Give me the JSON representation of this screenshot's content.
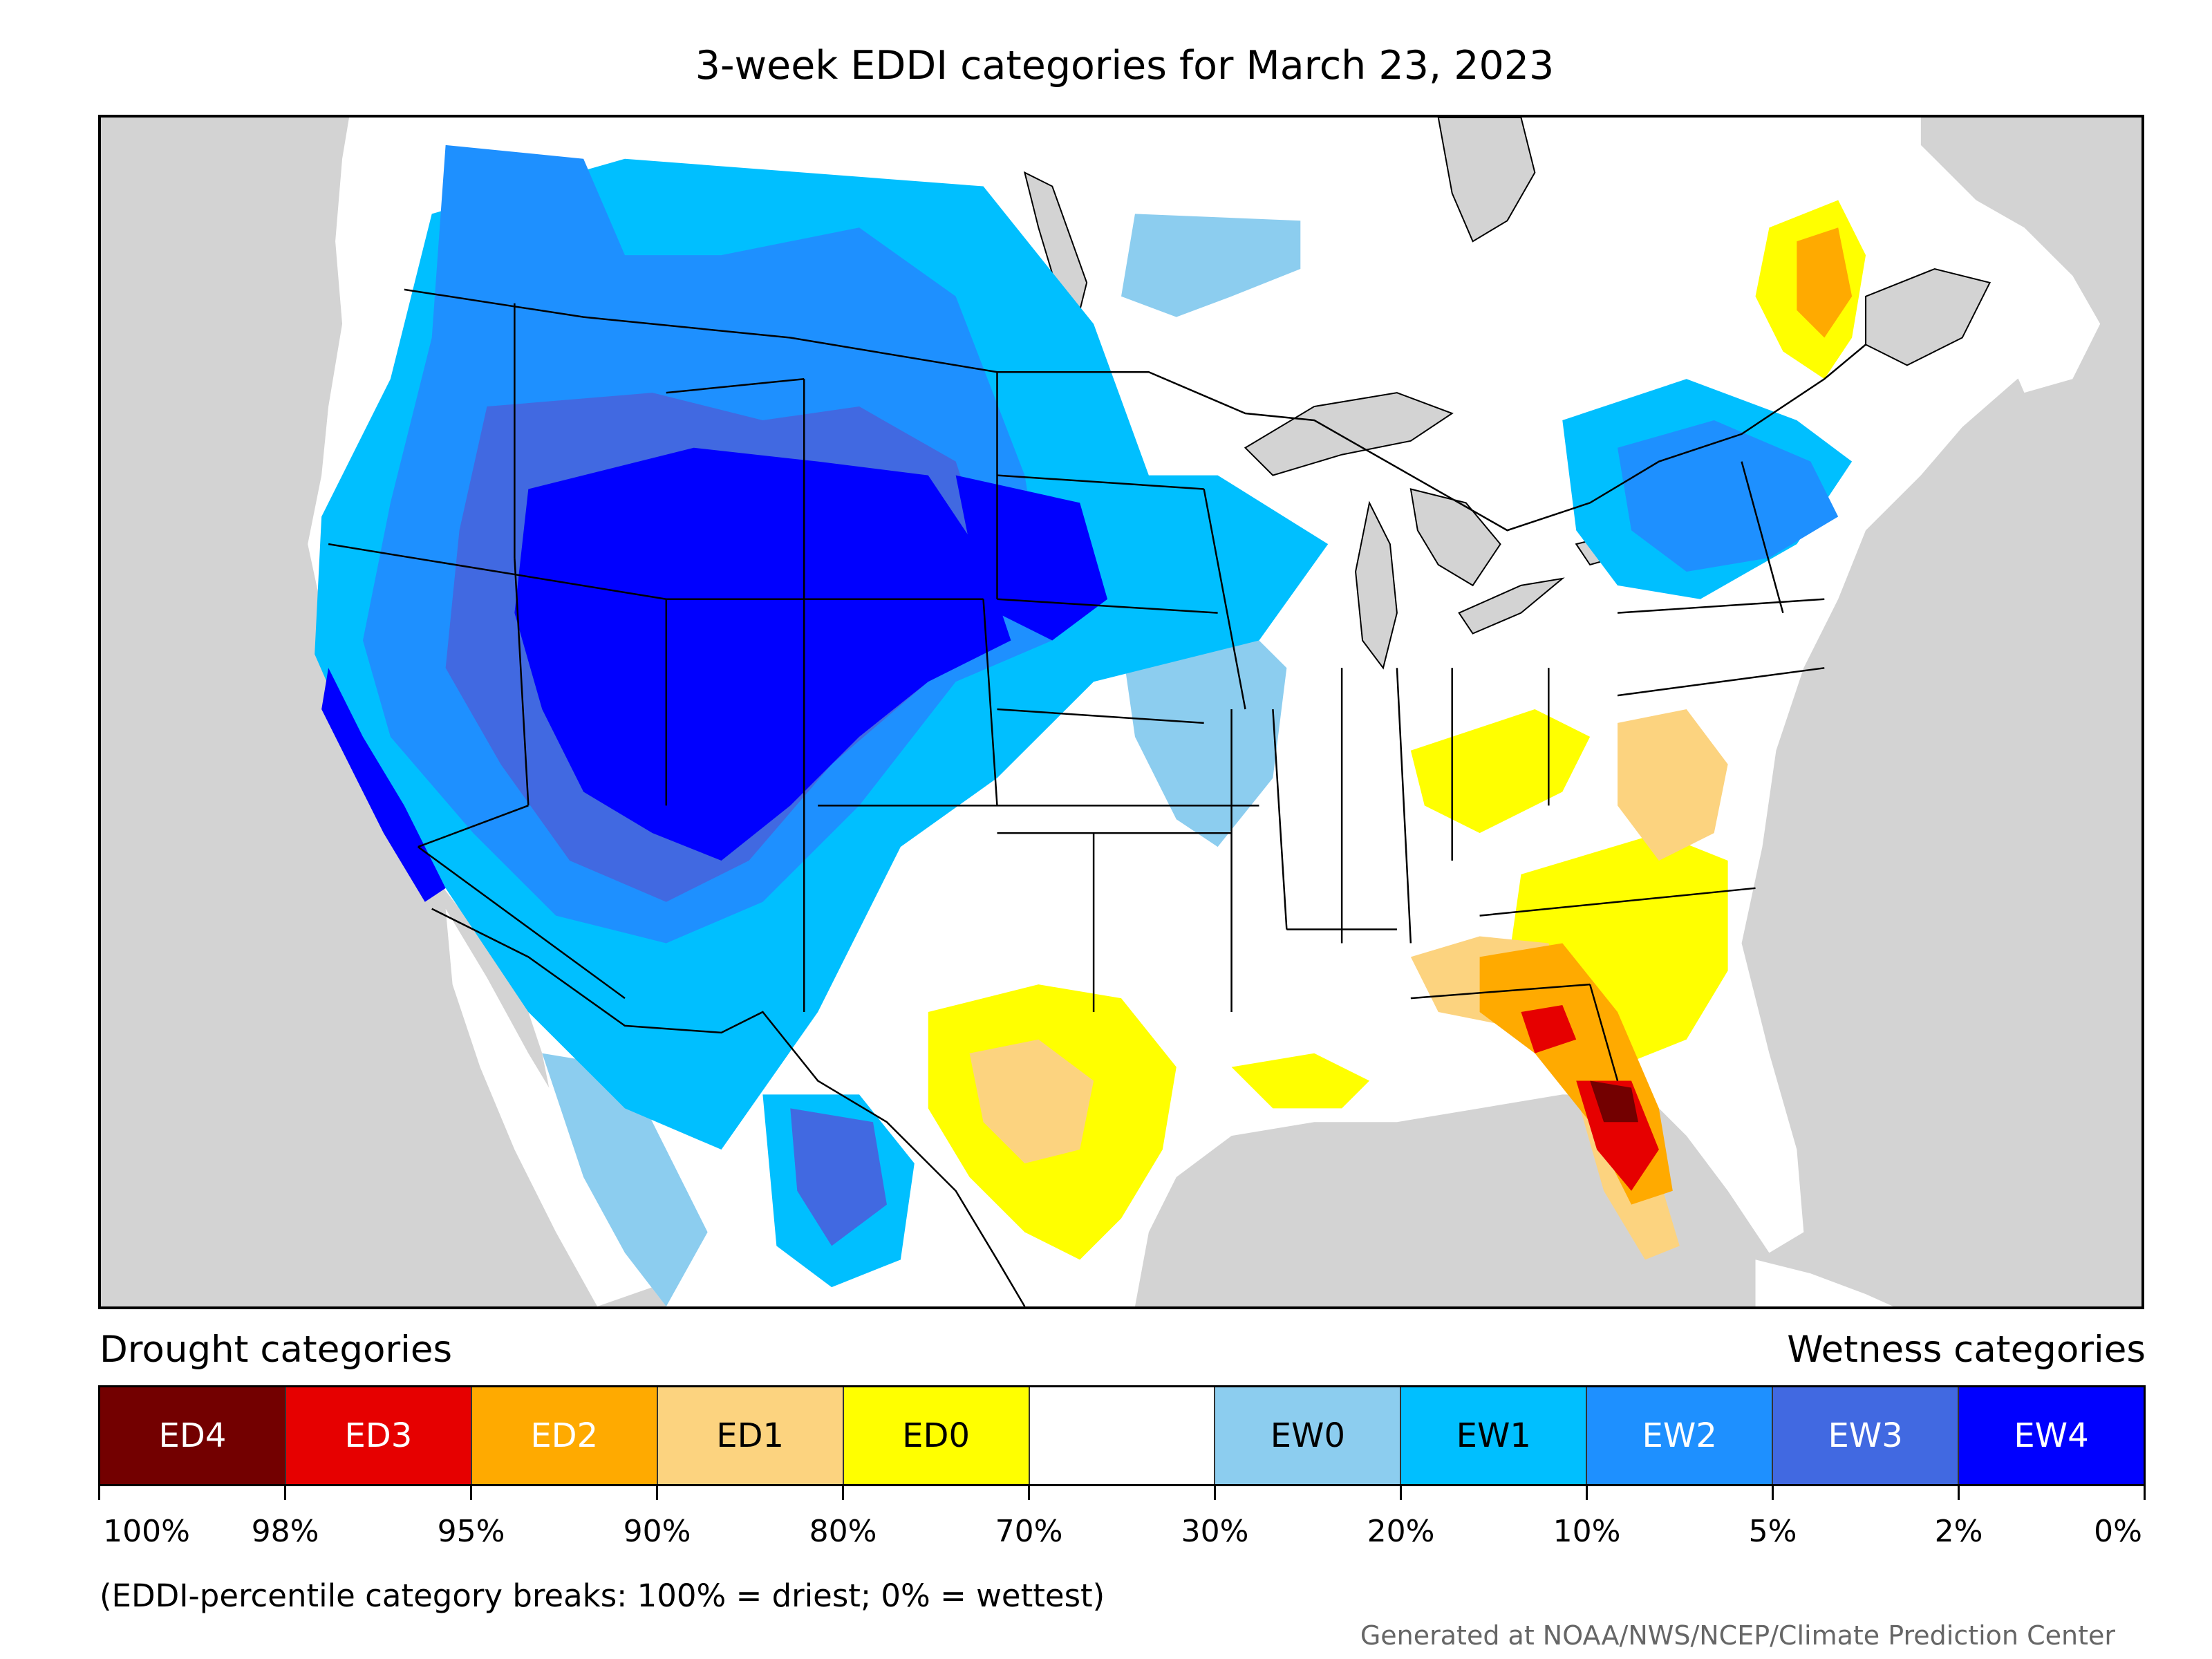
{
  "title": "3-week EDDI categories for March 23, 2023",
  "legend": {
    "drought_heading": "Drought categories",
    "wetness_heading": "Wetness categories",
    "categories": [
      {
        "label": "ED4",
        "color": "#730000",
        "text_color": "#ffffff"
      },
      {
        "label": "ED3",
        "color": "#e60000",
        "text_color": "#ffffff"
      },
      {
        "label": "ED2",
        "color": "#ffaa00",
        "text_color": "#ffffff"
      },
      {
        "label": "ED1",
        "color": "#fcd37f",
        "text_color": "#000000"
      },
      {
        "label": "ED0",
        "color": "#ffff00",
        "text_color": "#000000"
      },
      {
        "label": "",
        "color": "#ffffff",
        "text_color": "#000000"
      },
      {
        "label": "EW0",
        "color": "#8ccdef",
        "text_color": "#000000"
      },
      {
        "label": "EW1",
        "color": "#00bfff",
        "text_color": "#000000"
      },
      {
        "label": "EW2",
        "color": "#1e90ff",
        "text_color": "#ffffff"
      },
      {
        "label": "EW3",
        "color": "#4169e1",
        "text_color": "#ffffff"
      },
      {
        "label": "EW4",
        "color": "#0000ff",
        "text_color": "#ffffff"
      }
    ],
    "tick_labels": [
      "100%",
      "98%",
      "95%",
      "90%",
      "80%",
      "70%",
      "30%",
      "20%",
      "10%",
      "5%",
      "2%",
      "0%"
    ]
  },
  "footnote": "(EDDI-percentile category breaks: 100% = driest; 0% = wettest)",
  "credit": "Generated at NOAA/NWS/NCEP/Climate Prediction Center",
  "map": {
    "background_color": "#d3d3d3",
    "land_color": "#ffffff"
  }
}
